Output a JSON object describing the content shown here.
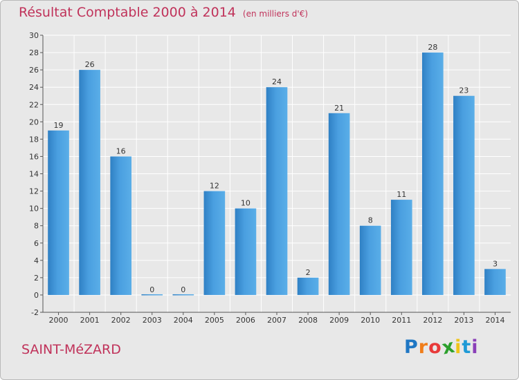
{
  "header": {
    "title": "Résultat Comptable 2000 à 2014",
    "subtitle": "(en milliers d'€)"
  },
  "footer": {
    "commune": "SAINT-MéZARD",
    "logo_letters": [
      "P",
      "r",
      "o",
      "x",
      "i",
      "t",
      "i"
    ],
    "logo_colors": [
      "#1f77c4",
      "#f07d1a",
      "#e83a3a",
      "#2ca02c",
      "#f0c419",
      "#1f9ad6",
      "#8a3fb8"
    ]
  },
  "chart_data": {
    "type": "bar",
    "title": "Résultat Comptable 2000 à 2014",
    "categories": [
      "2000",
      "2001",
      "2002",
      "2003",
      "2004",
      "2005",
      "2006",
      "2007",
      "2008",
      "2009",
      "2010",
      "2011",
      "2012",
      "2013",
      "2014"
    ],
    "values": [
      19,
      26,
      16,
      0,
      0,
      12,
      10,
      24,
      2,
      21,
      8,
      11,
      28,
      23,
      3
    ],
    "ylim": [
      -2,
      30
    ],
    "yticks": [
      -2,
      0,
      2,
      4,
      6,
      8,
      10,
      12,
      14,
      16,
      18,
      20,
      22,
      24,
      26,
      28,
      30
    ],
    "grid": true,
    "bar_color": "#4a9fe0"
  }
}
